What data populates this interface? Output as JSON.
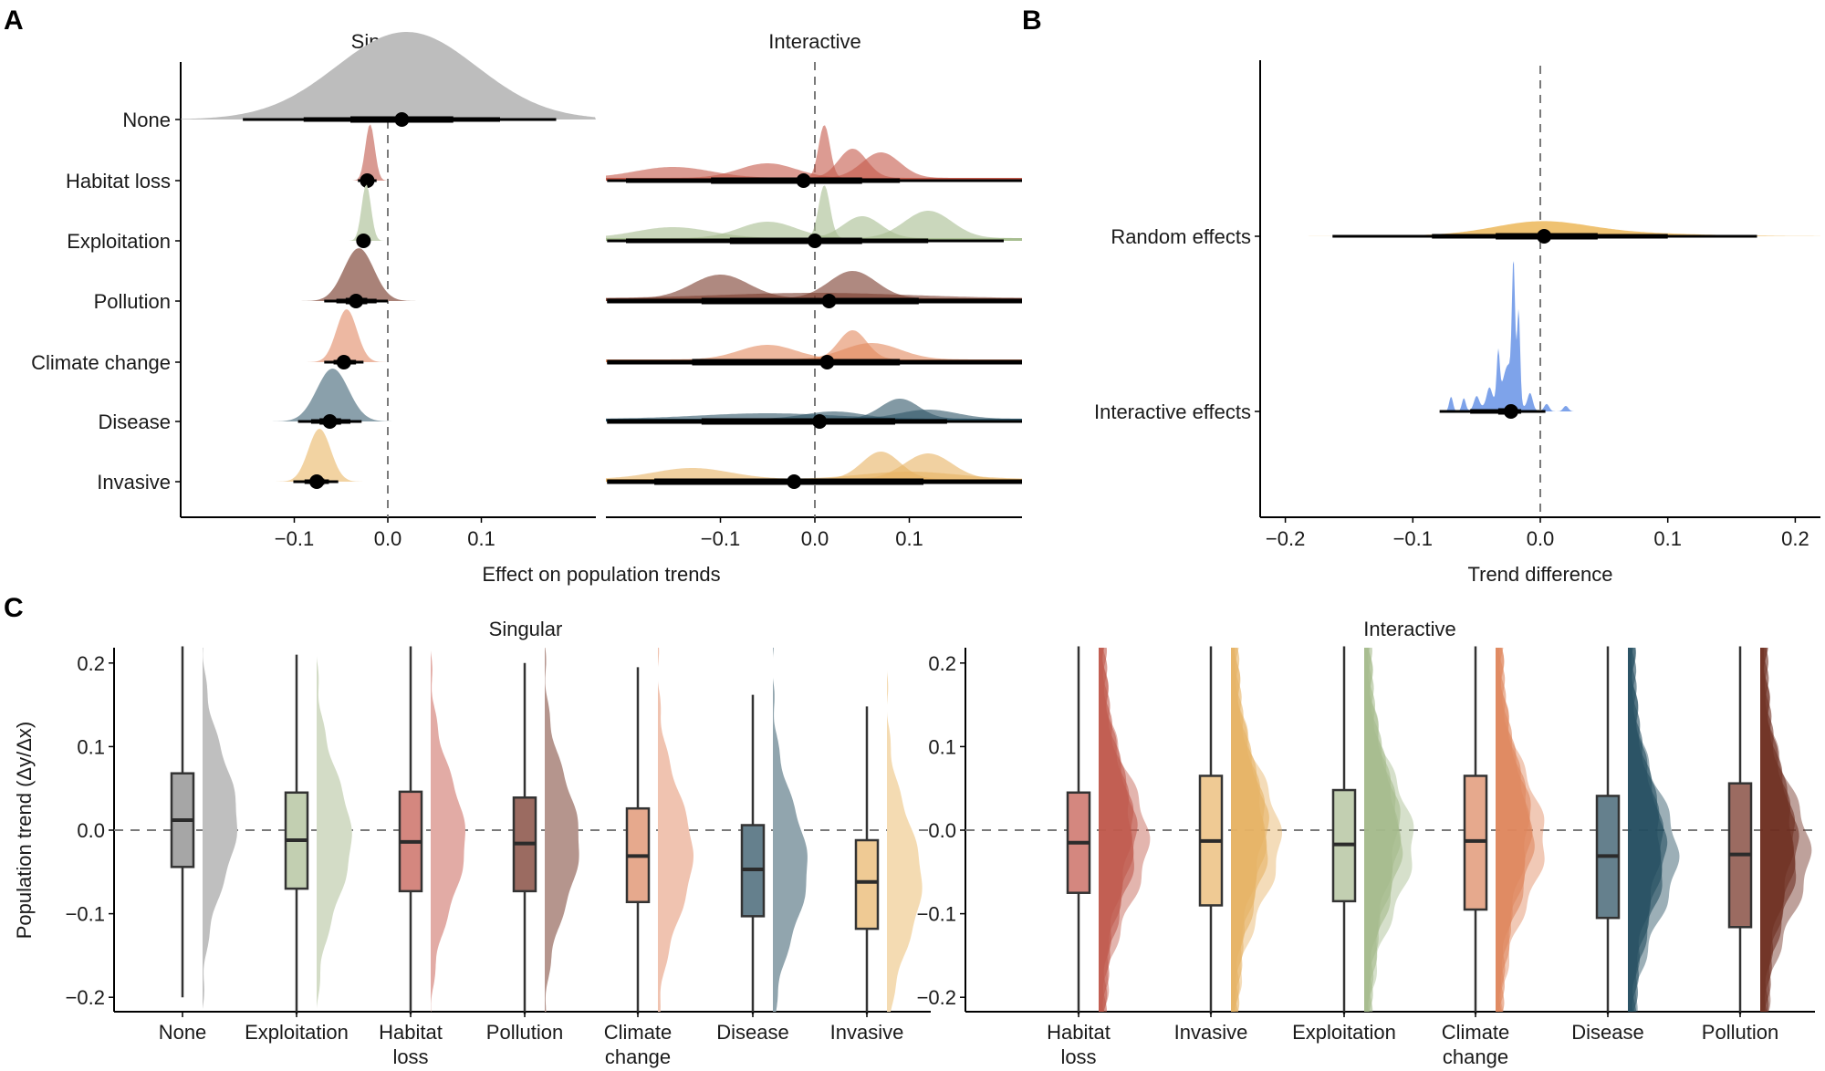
{
  "figure": {
    "panel_letters": [
      "A",
      "B",
      "C"
    ]
  },
  "chart_data": [
    {
      "id": "A",
      "type": "ridgeline-posterior",
      "xlabel": "Effect on population trends",
      "xlim": [
        -0.22,
        0.22
      ],
      "xticks": [
        -0.1,
        0.0,
        0.1
      ],
      "xtick_labels": [
        "−0.1",
        "0.0",
        "0.1"
      ],
      "reference_line": 0.0,
      "facets": [
        {
          "title": "Singular",
          "xlim": [
            -0.218,
            0.22
          ],
          "rows": [
            {
              "label": "None",
              "color": "#bdbdbd",
              "mean": 0.015,
              "ci50": [
                -0.04,
                0.07
              ],
              "ci80": [
                -0.09,
                0.12
              ],
              "ci95": [
                -0.155,
                0.18
              ],
              "sd": 0.075,
              "n_curves": 1
            },
            {
              "label": "Habitat loss",
              "color": "#d99a92",
              "mean": -0.022,
              "ci50": [
                -0.025,
                -0.018
              ],
              "ci80": [
                -0.028,
                -0.015
              ],
              "ci95": [
                -0.032,
                -0.012
              ],
              "sd": 0.005,
              "n_curves": 1
            },
            {
              "label": "Exploitation",
              "color": "#c9d6bb",
              "mean": -0.026,
              "ci50": [
                -0.029,
                -0.023
              ],
              "ci80": [
                -0.031,
                -0.021
              ],
              "ci95": [
                -0.033,
                -0.019
              ],
              "sd": 0.005,
              "n_curves": 1
            },
            {
              "label": "Pollution",
              "color": "#a98278",
              "mean": -0.034,
              "ci50": [
                -0.045,
                -0.022
              ],
              "ci80": [
                -0.055,
                -0.012
              ],
              "ci95": [
                -0.068,
                0.0
              ],
              "sd": 0.016,
              "n_curves": 1
            },
            {
              "label": "Climate change",
              "color": "#edb8a2",
              "mean": -0.047,
              "ci50": [
                -0.053,
                -0.04
              ],
              "ci80": [
                -0.058,
                -0.034
              ],
              "ci95": [
                -0.068,
                -0.026
              ],
              "sd": 0.011,
              "n_curves": 1
            },
            {
              "label": "Disease",
              "color": "#8aa0ab",
              "mean": -0.062,
              "ci50": [
                -0.073,
                -0.05
              ],
              "ci80": [
                -0.082,
                -0.04
              ],
              "ci95": [
                -0.096,
                -0.028
              ],
              "sd": 0.017,
              "n_curves": 1
            },
            {
              "label": "Invasive",
              "color": "#f2d3a2",
              "mean": -0.076,
              "ci50": [
                -0.083,
                -0.068
              ],
              "ci80": [
                -0.089,
                -0.063
              ],
              "ci95": [
                -0.101,
                -0.053
              ],
              "sd": 0.012,
              "n_curves": 1
            }
          ]
        },
        {
          "title": "Interactive",
          "xlim": [
            -0.225,
            0.22
          ],
          "rows": [
            {
              "label": "Habitat loss",
              "color": "#c4594a",
              "mean": -0.012,
              "ci50": [
                -0.11,
                0.05
              ],
              "ci80": [
                -0.2,
                0.09
              ],
              "ci95": [
                -0.22,
                0.22
              ]
            },
            {
              "label": "Exploitation",
              "color": "#a7bc8f",
              "mean": 0.0,
              "ci50": [
                -0.09,
                0.05
              ],
              "ci80": [
                -0.2,
                0.12
              ],
              "ci95": [
                -0.22,
                0.2
              ]
            },
            {
              "label": "Pollution",
              "color": "#7a3a2c",
              "mean": 0.015,
              "ci50": [
                -0.12,
                0.11
              ],
              "ci80": [
                -0.22,
                0.22
              ],
              "ci95": [
                -0.22,
                0.22
              ]
            },
            {
              "label": "Climate change",
              "color": "#e2895e",
              "mean": 0.013,
              "ci50": [
                -0.13,
                0.09
              ],
              "ci80": [
                -0.22,
                0.22
              ],
              "ci95": [
                -0.22,
                0.22
              ]
            },
            {
              "label": "Disease",
              "color": "#2e5567",
              "mean": 0.005,
              "ci50": [
                -0.12,
                0.085
              ],
              "ci80": [
                -0.22,
                0.14
              ],
              "ci95": [
                -0.22,
                0.22
              ]
            },
            {
              "label": "Invasive",
              "color": "#e8b263",
              "mean": -0.022,
              "ci50": [
                -0.17,
                0.115
              ],
              "ci80": [
                -0.22,
                0.22
              ],
              "ci95": [
                -0.22,
                0.22
              ]
            }
          ]
        }
      ]
    },
    {
      "id": "B",
      "type": "posterior-interval",
      "xlabel": "Trend difference",
      "xlim": [
        -0.22,
        0.22
      ],
      "xticks": [
        -0.2,
        -0.1,
        0.0,
        0.1,
        0.2
      ],
      "xtick_labels": [
        "−0.2",
        "−0.1",
        "0.0",
        "0.1",
        "0.2"
      ],
      "reference_line": 0.0,
      "rows": [
        {
          "label": "Random effects",
          "color": "#efc272",
          "mean": 0.003,
          "ci50": [
            -0.035,
            0.045
          ],
          "ci80": [
            -0.085,
            0.1
          ],
          "ci95": [
            -0.163,
            0.17
          ]
        },
        {
          "label": "Interactive effects",
          "color": "#7ea3ea",
          "mean": -0.023,
          "ci50": [
            -0.033,
            -0.02
          ],
          "ci80": [
            -0.055,
            -0.015
          ],
          "ci95": [
            -0.079,
            0.004
          ]
        }
      ]
    },
    {
      "id": "C",
      "type": "raincloud-boxplot",
      "ylabel": "Population trend (Δy/Δx)",
      "ylim": [
        -0.22,
        0.22
      ],
      "yticks": [
        -0.2,
        -0.1,
        0.0,
        0.1,
        0.2
      ],
      "ytick_labels": [
        "−0.2",
        "−0.1",
        "0.0",
        "0.1",
        "0.2"
      ],
      "reference_line": 0.0,
      "facets": [
        {
          "title": "Singular",
          "groups": [
            {
              "label": "None",
              "label_lines": [
                "None"
              ],
              "box_color": "#a6a6a6",
              "cloud_color": "#bfbfbf",
              "median": 0.012,
              "q1": -0.044,
              "q3": 0.068,
              "whisker_low": -0.2,
              "whisker_high": 0.22,
              "layers": 1
            },
            {
              "label": "Exploitation",
              "label_lines": [
                "Exploitation"
              ],
              "box_color": "#c2cfb1",
              "cloud_color": "#d3dcc6",
              "median": -0.012,
              "q1": -0.07,
              "q3": 0.045,
              "whisker_low": -0.22,
              "whisker_high": 0.21,
              "layers": 1
            },
            {
              "label": "Habitat loss",
              "label_lines": [
                "Habitat",
                "loss"
              ],
              "box_color": "#d4877f",
              "cloud_color": "#e2aba5",
              "median": -0.014,
              "q1": -0.073,
              "q3": 0.046,
              "whisker_low": -0.22,
              "whisker_high": 0.22,
              "layers": 1
            },
            {
              "label": "Pollution",
              "label_lines": [
                "Pollution"
              ],
              "box_color": "#9b6b61",
              "cloud_color": "#b5958d",
              "median": -0.016,
              "q1": -0.073,
              "q3": 0.039,
              "whisker_low": -0.22,
              "whisker_high": 0.2,
              "layers": 1
            },
            {
              "label": "Climate change",
              "label_lines": [
                "Climate",
                "change"
              ],
              "box_color": "#e6a98d",
              "cloud_color": "#f0c3b0",
              "median": -0.031,
              "q1": -0.086,
              "q3": 0.026,
              "whisker_low": -0.22,
              "whisker_high": 0.195,
              "layers": 1
            },
            {
              "label": "Disease",
              "label_lines": [
                "Disease"
              ],
              "box_color": "#65808d",
              "cloud_color": "#91a5ae",
              "median": -0.047,
              "q1": -0.103,
              "q3": 0.006,
              "whisker_low": -0.22,
              "whisker_high": 0.162,
              "layers": 1
            },
            {
              "label": "Invasive",
              "label_lines": [
                "Invasive"
              ],
              "box_color": "#efca94",
              "cloud_color": "#f4dbb2",
              "median": -0.062,
              "q1": -0.118,
              "q3": -0.012,
              "whisker_low": -0.22,
              "whisker_high": 0.148,
              "layers": 1
            }
          ]
        },
        {
          "title": "Interactive",
          "groups": [
            {
              "label": "Habitat loss",
              "label_lines": [
                "Habitat",
                "loss"
              ],
              "box_color": "#d4877f",
              "cloud_color": "#c05a4c",
              "median": -0.015,
              "q1": -0.075,
              "q3": 0.045,
              "whisker_low": -0.22,
              "whisker_high": 0.22,
              "layers": 4
            },
            {
              "label": "Invasive",
              "label_lines": [
                "Invasive"
              ],
              "box_color": "#efca94",
              "cloud_color": "#e6b264",
              "median": -0.013,
              "q1": -0.09,
              "q3": 0.065,
              "whisker_low": -0.22,
              "whisker_high": 0.22,
              "layers": 4
            },
            {
              "label": "Exploitation",
              "label_lines": [
                "Exploitation"
              ],
              "box_color": "#c2cfb1",
              "cloud_color": "#a5ba8c",
              "median": -0.017,
              "q1": -0.085,
              "q3": 0.048,
              "whisker_low": -0.22,
              "whisker_high": 0.22,
              "layers": 4
            },
            {
              "label": "Climate change",
              "label_lines": [
                "Climate",
                "change"
              ],
              "box_color": "#e6a98d",
              "cloud_color": "#e0875d",
              "median": -0.013,
              "q1": -0.095,
              "q3": 0.065,
              "whisker_low": -0.22,
              "whisker_high": 0.22,
              "layers": 4
            },
            {
              "label": "Disease",
              "label_lines": [
                "Disease"
              ],
              "box_color": "#65808d",
              "cloud_color": "#244e60",
              "median": -0.031,
              "q1": -0.105,
              "q3": 0.041,
              "whisker_low": -0.22,
              "whisker_high": 0.22,
              "layers": 4
            },
            {
              "label": "Pollution",
              "label_lines": [
                "Pollution"
              ],
              "box_color": "#9b6b61",
              "cloud_color": "#6e2e22",
              "median": -0.029,
              "q1": -0.116,
              "q3": 0.056,
              "whisker_low": -0.22,
              "whisker_high": 0.22,
              "layers": 4
            }
          ]
        }
      ]
    }
  ]
}
